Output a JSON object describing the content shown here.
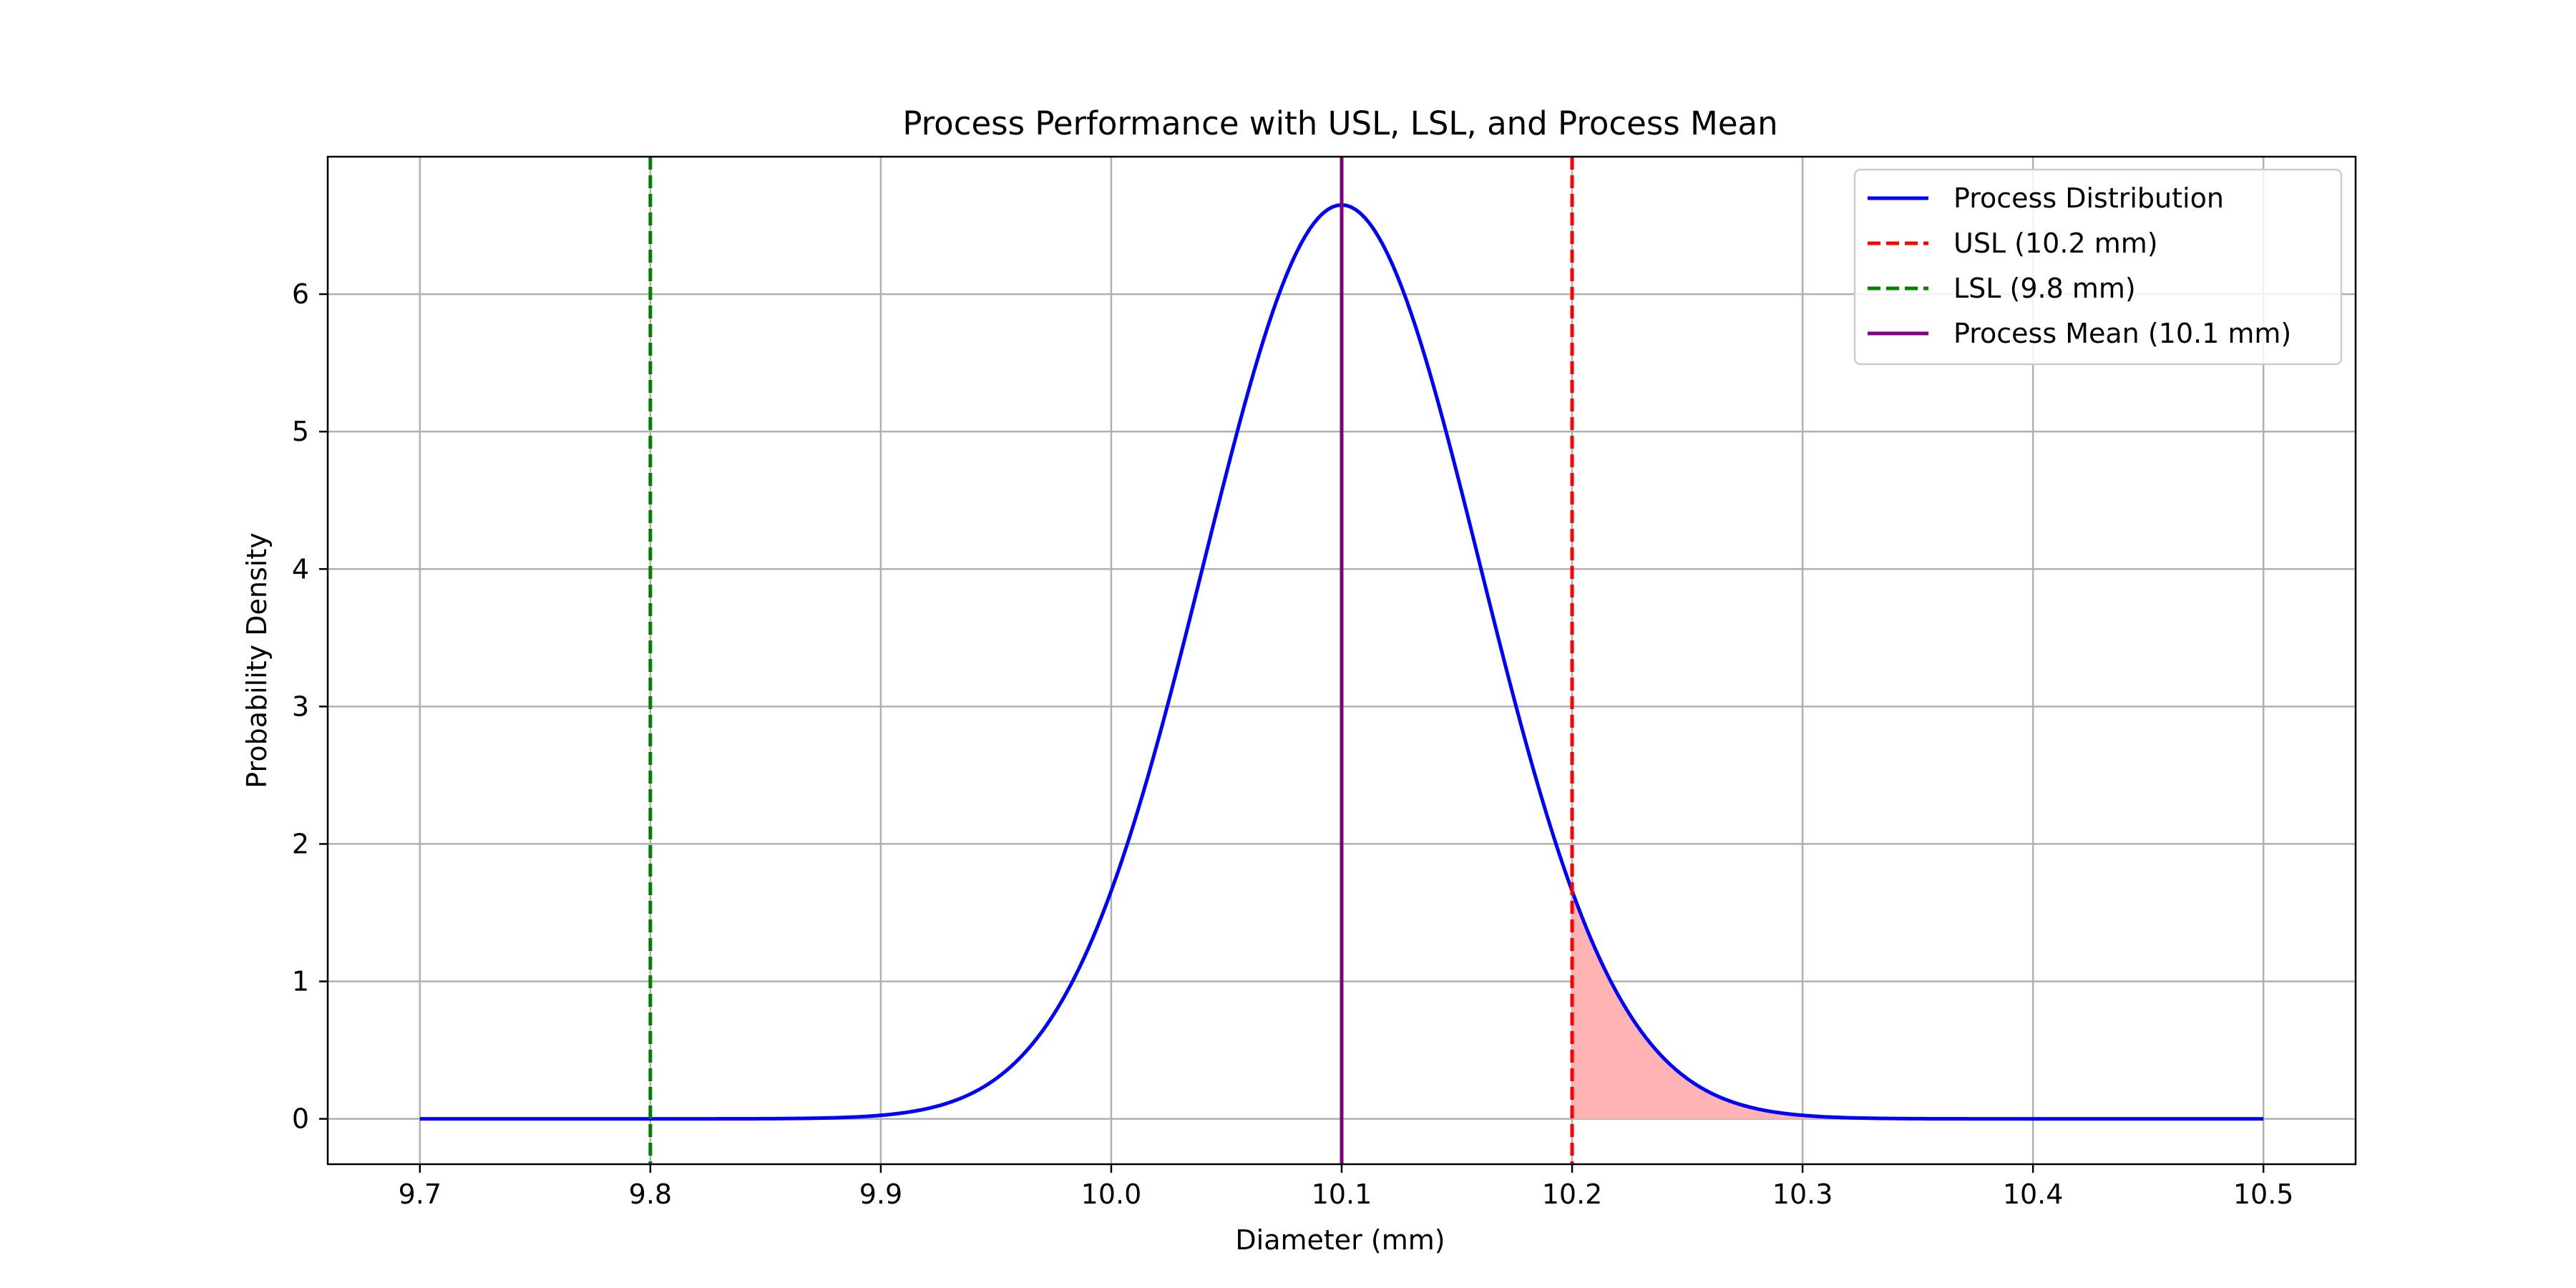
{
  "chart_data": {
    "type": "line",
    "title": "Process Performance with USL, LSL, and Process Mean",
    "xlabel": "Diameter (mm)",
    "ylabel": "Probability Density",
    "xlim": [
      9.66,
      10.54
    ],
    "ylim": [
      -0.33,
      7.0
    ],
    "x_ticks": [
      9.7,
      9.8,
      9.9,
      10.0,
      10.1,
      10.2,
      10.3,
      10.4,
      10.5
    ],
    "x_tick_labels": [
      "9.7",
      "9.8",
      "9.9",
      "10.0",
      "10.1",
      "10.2",
      "10.3",
      "10.4",
      "10.5"
    ],
    "y_ticks": [
      0,
      1,
      2,
      3,
      4,
      5,
      6
    ],
    "y_tick_labels": [
      "0",
      "1",
      "2",
      "3",
      "4",
      "5",
      "6"
    ],
    "grid": true,
    "legend_position": "upper right",
    "distribution": {
      "name": "Process Distribution",
      "color": "#0000ff",
      "mean": 10.1,
      "std": 0.06,
      "x_range": [
        9.7,
        10.5
      ],
      "peak_density": 6.65
    },
    "reference_lines": [
      {
        "name": "USL (10.2 mm)",
        "x": 10.2,
        "color": "#ff0000",
        "style": "dashed"
      },
      {
        "name": "LSL (9.8 mm)",
        "x": 9.8,
        "color": "#008000",
        "style": "dashed"
      },
      {
        "name": "Process Mean (10.1 mm)",
        "x": 10.1,
        "color": "#800080",
        "style": "solid"
      }
    ],
    "shaded_region": {
      "from": 10.2,
      "to": 10.5,
      "color": "#ffb3b3",
      "description_of_area": "tail above USL"
    },
    "legend": [
      "Process Distribution",
      "USL (10.2 mm)",
      "LSL (9.8 mm)",
      "Process Mean (10.1 mm)"
    ]
  }
}
